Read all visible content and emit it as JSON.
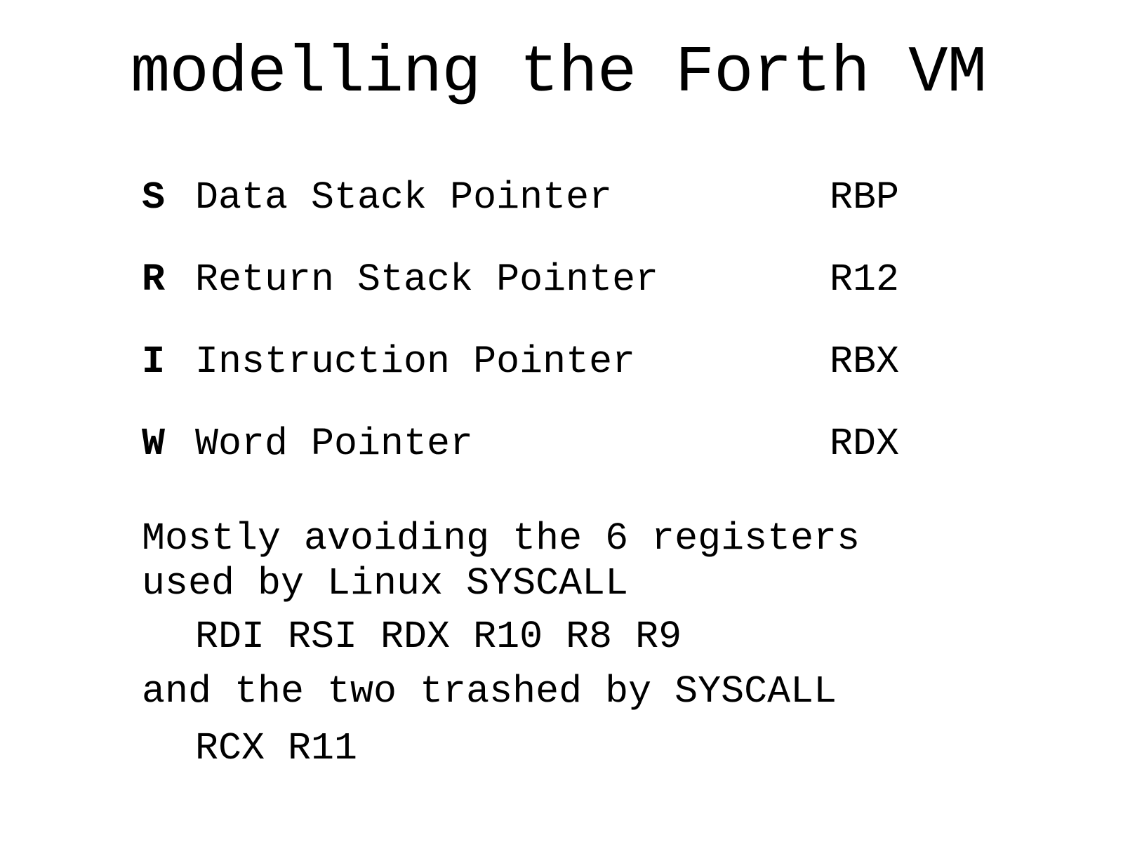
{
  "title": "modelling the Forth VM",
  "registers": [
    {
      "letter": "S",
      "name": "Data Stack Pointer",
      "cpu": "RBP"
    },
    {
      "letter": "R",
      "name": "Return Stack Pointer",
      "cpu": "R12"
    },
    {
      "letter": "I",
      "name": "Instruction Pointer",
      "cpu": "RBX"
    },
    {
      "letter": "W",
      "name": "Word Pointer",
      "cpu": "RDX"
    }
  ],
  "notes": {
    "line1": "Mostly avoiding the 6 registers",
    "line2": "used by Linux SYSCALL",
    "syscall_regs": "RDI RSI RDX R10 R8 R9",
    "line3": "and the two trashed by SYSCALL",
    "trashed_regs": "RCX R11"
  }
}
